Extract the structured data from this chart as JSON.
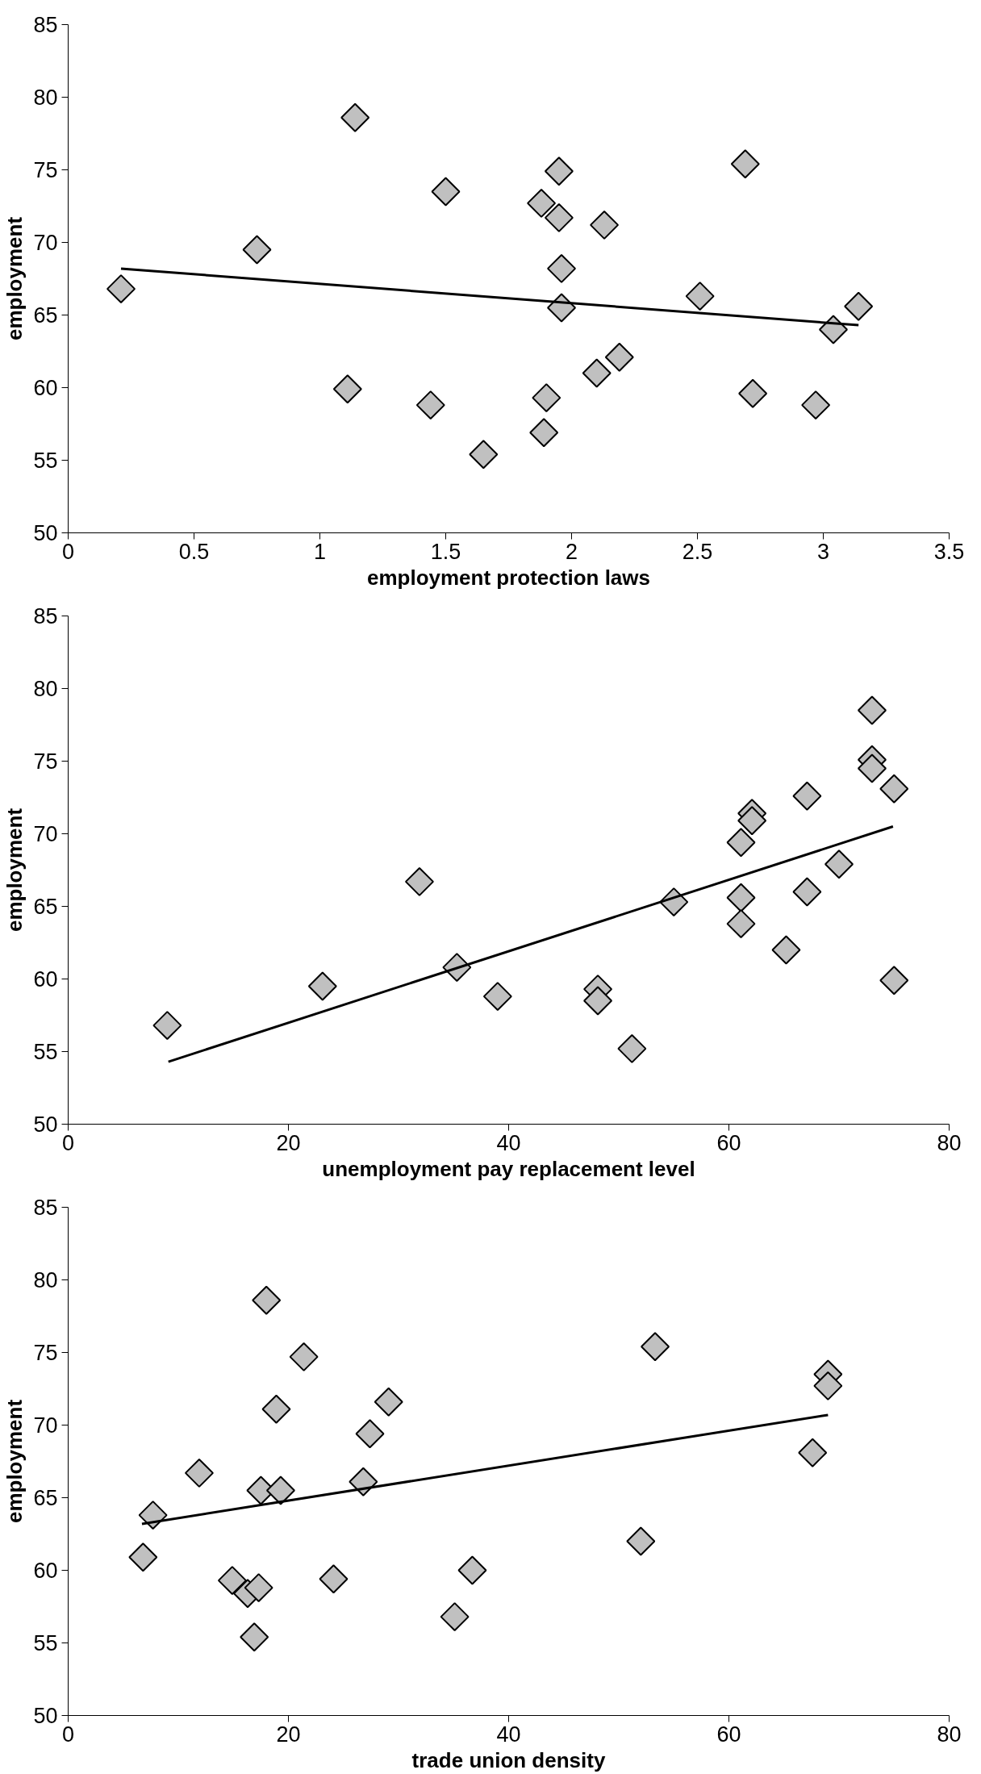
{
  "chart_data": [
    {
      "type": "scatter",
      "xlabel": "employment protection laws",
      "ylabel": "employment",
      "xlim": [
        0,
        3.5
      ],
      "xticks": [
        0,
        0.5,
        1,
        1.5,
        2,
        2.5,
        3,
        3.5
      ],
      "ylim": [
        50,
        85
      ],
      "yticks": [
        50,
        55,
        60,
        65,
        70,
        75,
        80,
        85
      ],
      "grid": false,
      "series": [
        {
          "marker": "diamond",
          "color": "#c0c0c0",
          "x": [
            0.21,
            0.75,
            1.11,
            1.14,
            1.5,
            1.44,
            1.65,
            1.88,
            1.89,
            1.9,
            1.95,
            1.95,
            1.96,
            1.96,
            2.1,
            2.13,
            2.19,
            2.51,
            2.69,
            2.72,
            2.97,
            3.04,
            3.14
          ],
          "values": [
            66.8,
            69.5,
            59.9,
            78.6,
            73.5,
            58.8,
            55.4,
            72.7,
            56.9,
            59.3,
            71.7,
            74.9,
            68.2,
            65.5,
            61.0,
            71.2,
            62.1,
            66.3,
            75.4,
            59.6,
            58.8,
            64.0,
            65.6
          ]
        },
        {
          "type": "line",
          "line_style": "solid",
          "color": "#000000",
          "x": [
            0.21,
            3.14
          ],
          "values": [
            68.2,
            64.3
          ]
        }
      ]
    },
    {
      "type": "scatter",
      "xlabel": "unemployment pay replacement level",
      "ylabel": "employment",
      "xlim": [
        0,
        80
      ],
      "xticks": [
        0,
        20,
        40,
        60,
        80
      ],
      "ylim": [
        50,
        85
      ],
      "yticks": [
        50,
        55,
        60,
        65,
        70,
        75,
        80,
        85
      ],
      "grid": false,
      "series": [
        {
          "marker": "diamond",
          "color": "#c0c0c0",
          "x": [
            9.0,
            23.1,
            31.9,
            35.3,
            39.0,
            48.1,
            48.1,
            51.2,
            55.0,
            61.1,
            62.1,
            62.1,
            61.1,
            61.1,
            65.2,
            67.1,
            67.1,
            70.0,
            73.0,
            73.0,
            73.0,
            75.0,
            75.0
          ],
          "values": [
            56.8,
            59.5,
            66.7,
            60.8,
            58.8,
            59.3,
            58.5,
            55.2,
            65.3,
            69.4,
            71.4,
            70.9,
            65.6,
            63.8,
            62.0,
            72.6,
            66.0,
            67.9,
            78.5,
            75.1,
            74.5,
            73.1,
            59.9
          ]
        },
        {
          "type": "line",
          "line_style": "solid",
          "color": "#000000",
          "x": [
            9.1,
            74.9
          ],
          "values": [
            54.3,
            70.5
          ]
        }
      ]
    },
    {
      "type": "scatter",
      "xlabel": "trade union density",
      "ylabel": "employment",
      "xlim": [
        0,
        80
      ],
      "xticks": [
        0,
        20,
        40,
        60,
        80
      ],
      "ylim": [
        50,
        85
      ],
      "yticks": [
        50,
        55,
        60,
        65,
        70,
        75,
        80,
        85
      ],
      "grid": false,
      "series": [
        {
          "marker": "diamond",
          "color": "#c0c0c0",
          "x": [
            6.8,
            7.7,
            11.9,
            14.9,
            16.3,
            17.3,
            16.9,
            17.5,
            18.0,
            18.9,
            19.3,
            21.4,
            24.1,
            26.8,
            27.4,
            29.1,
            35.1,
            36.7,
            52.0,
            53.3,
            67.6,
            69.0,
            69.0
          ],
          "values": [
            60.9,
            63.8,
            66.7,
            59.3,
            58.4,
            58.8,
            55.4,
            65.5,
            78.6,
            71.1,
            65.5,
            74.7,
            59.4,
            66.1,
            69.4,
            71.6,
            56.8,
            60.0,
            62.0,
            75.4,
            68.1,
            73.5,
            72.7
          ]
        },
        {
          "type": "line",
          "line_style": "solid",
          "color": "#000000",
          "x": [
            6.7,
            69.0
          ],
          "values": [
            63.2,
            70.7
          ]
        }
      ]
    }
  ]
}
